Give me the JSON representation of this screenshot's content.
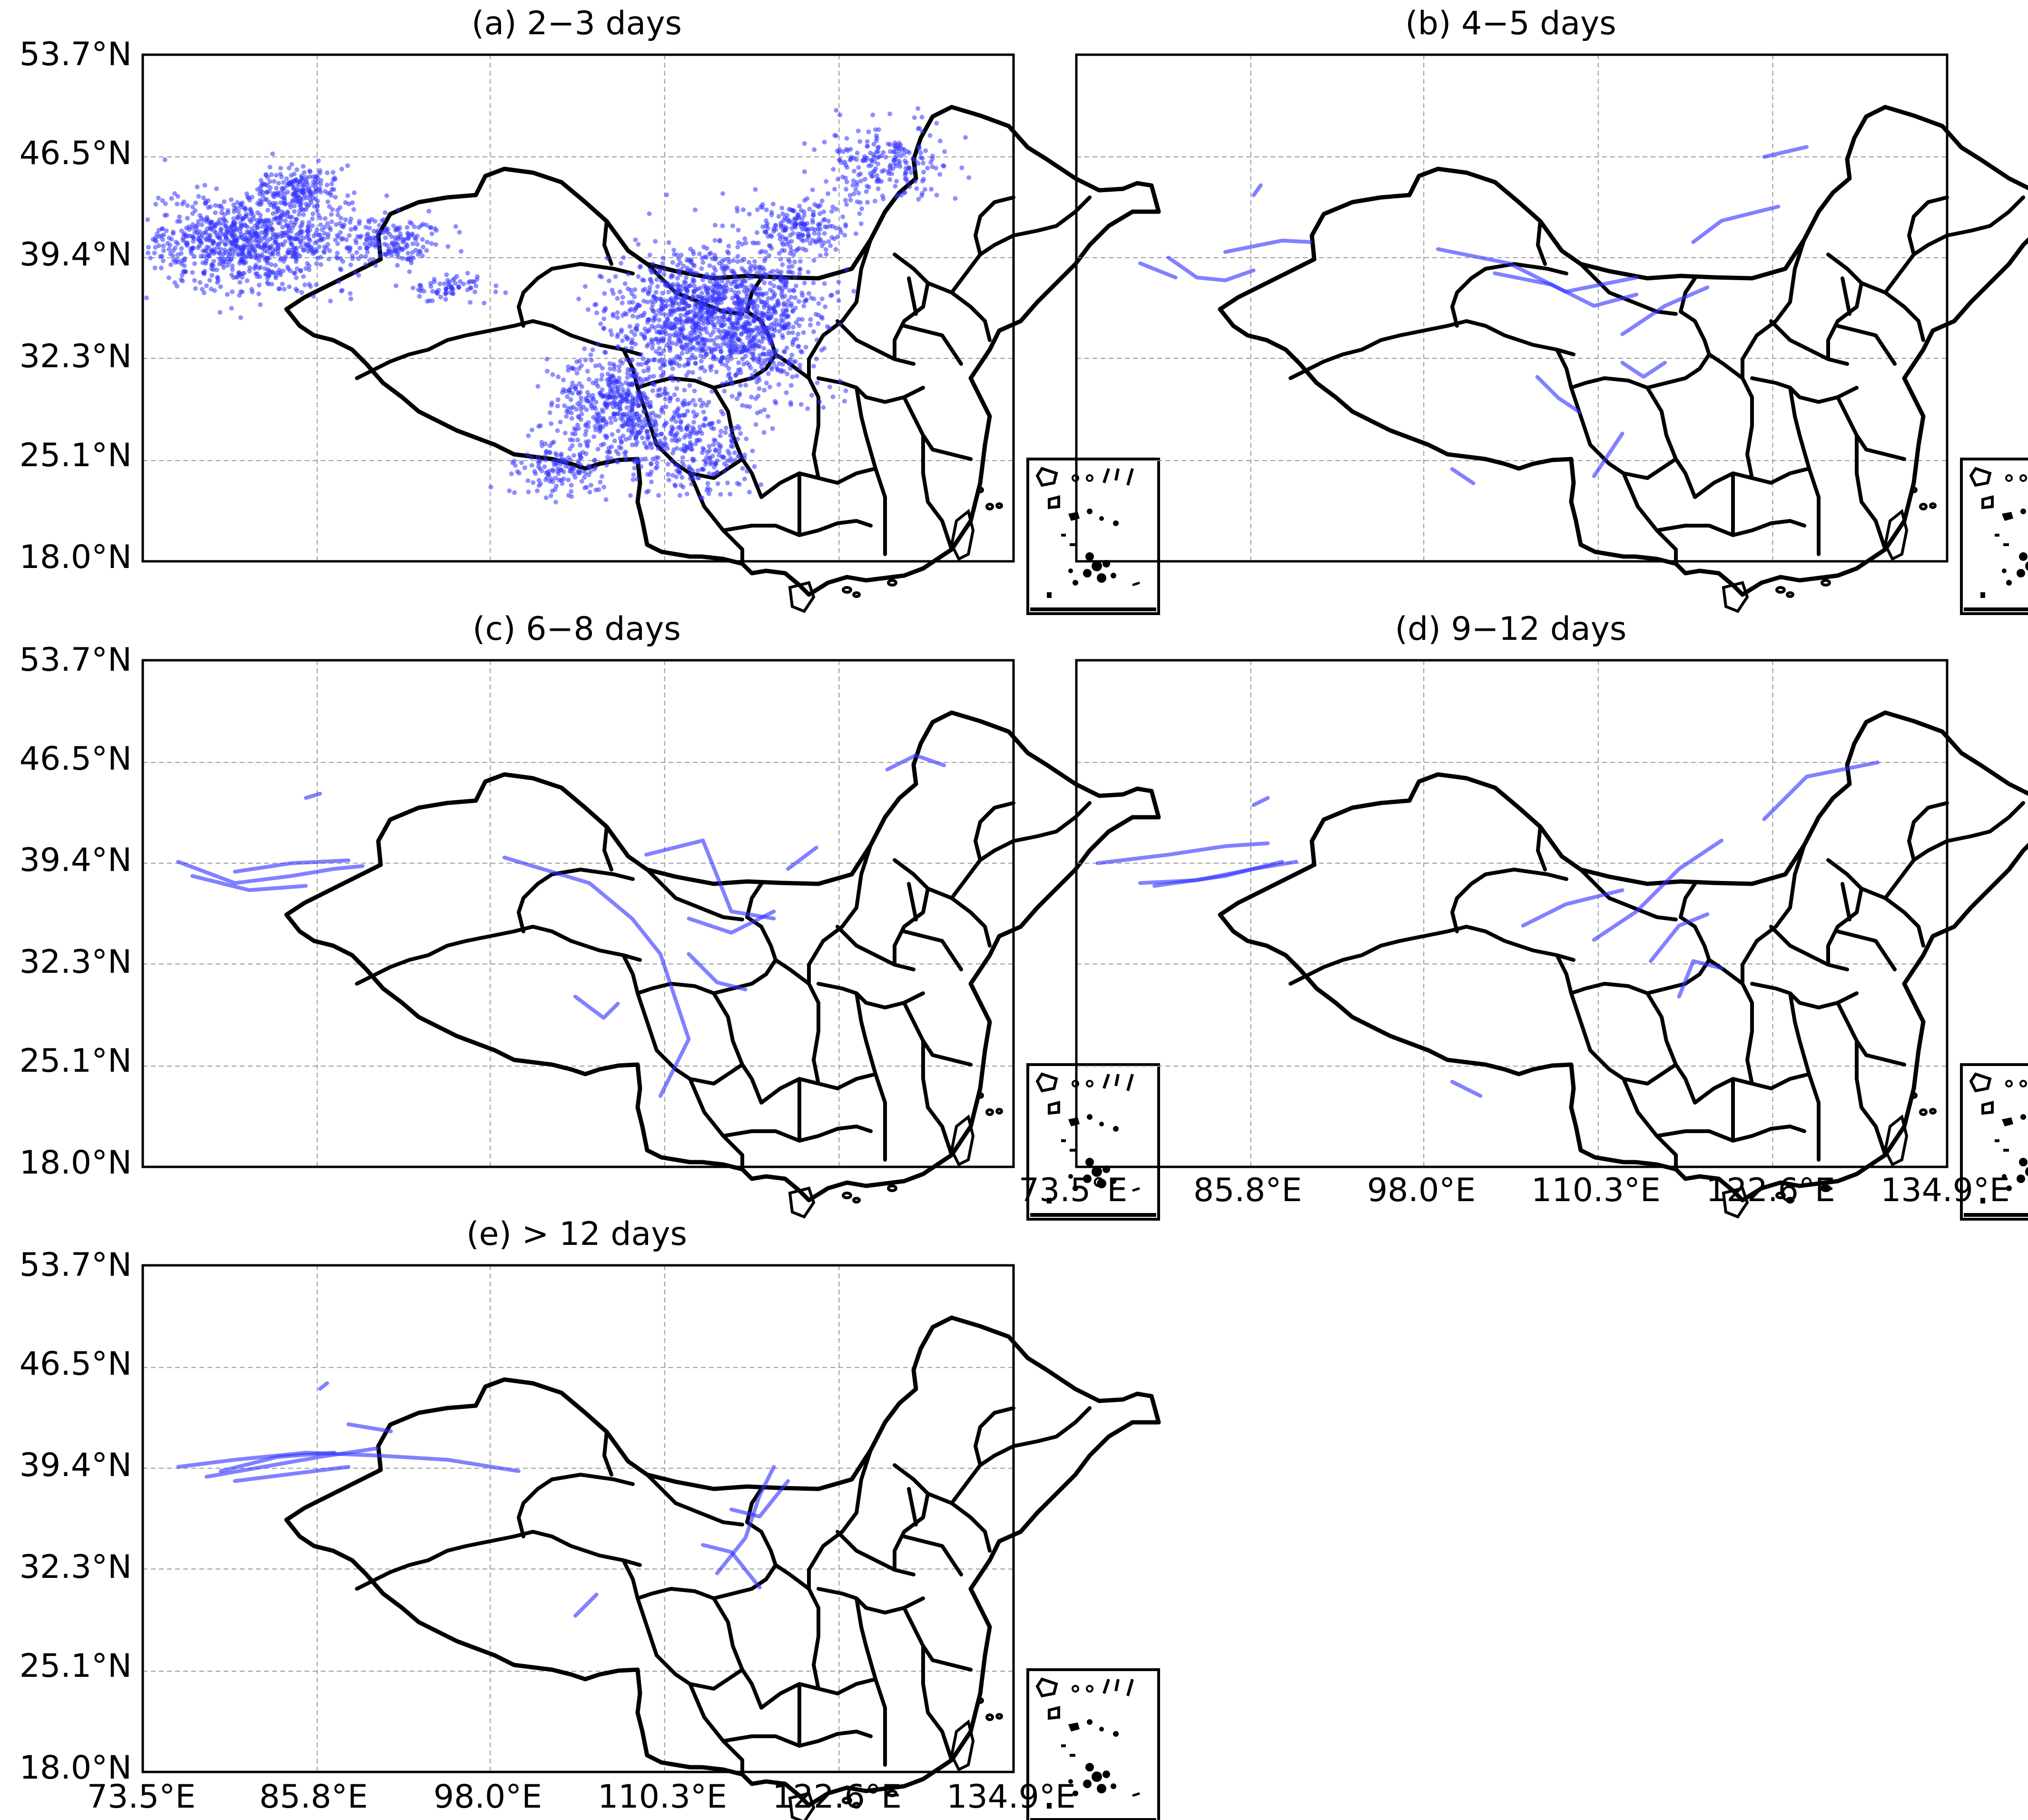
{
  "figure": {
    "colors": {
      "track": "#3333ff",
      "border": "#000000",
      "grid": "#9a9a9a"
    },
    "x_ticks": [
      "73.5°E",
      "85.8°E",
      "98.0°E",
      "110.3°E",
      "122.6°E",
      "134.9°E"
    ],
    "y_ticks": [
      "53.7°N",
      "46.5°N",
      "39.4°N",
      "32.3°N",
      "25.1°N",
      "18.0°N"
    ]
  },
  "panels": [
    {
      "title": "(a) 2−3 days"
    },
    {
      "title": "(b) 4−5 days"
    },
    {
      "title": "(c) 6−8 days"
    },
    {
      "title": "(d) 9−12 days"
    },
    {
      "title": "(e) > 12 days"
    }
  ],
  "chart_data": {
    "type": "scatter",
    "xlim": [
      73.5,
      134.9
    ],
    "ylim": [
      18.0,
      53.7
    ],
    "x_ticks": [
      73.5,
      85.8,
      98.0,
      110.3,
      122.6,
      134.9
    ],
    "y_ticks": [
      18.0,
      25.1,
      32.3,
      39.4,
      46.5,
      53.7
    ],
    "grid": true,
    "panels": [
      {
        "title": "(a) 2−3 days",
        "clusters": [
          {
            "lon": 81,
            "lat": 40.5,
            "spread": [
              7,
              3
            ],
            "count": 900
          },
          {
            "lon": 84.5,
            "lat": 44.3,
            "spread": [
              2.5,
              1.4
            ],
            "count": 180
          },
          {
            "lon": 91,
            "lat": 40.6,
            "spread": [
              3.5,
              1.5
            ],
            "count": 160
          },
          {
            "lon": 95,
            "lat": 37.3,
            "spread": [
              2.5,
              1.0
            ],
            "count": 70
          },
          {
            "lon": 112,
            "lat": 35.5,
            "spread": [
              5,
              4
            ],
            "count": 800
          },
          {
            "lon": 117,
            "lat": 35,
            "spread": [
              4,
              5
            ],
            "count": 600
          },
          {
            "lon": 107,
            "lat": 29,
            "spread": [
              4,
              3
            ],
            "count": 450
          },
          {
            "lon": 112,
            "lat": 26,
            "spread": [
              4,
              3
            ],
            "count": 300
          },
          {
            "lon": 103,
            "lat": 24.5,
            "spread": [
              3,
              2
            ],
            "count": 150
          },
          {
            "lon": 126,
            "lat": 46,
            "spread": [
              4,
              2.5
            ],
            "count": 220
          },
          {
            "lon": 120,
            "lat": 41.5,
            "spread": [
              3,
              2
            ],
            "count": 180
          }
        ]
      },
      {
        "title": "(b) 4−5 days",
        "tracks": [
          [
            [
              80,
              39.4
            ],
            [
              82,
              38.0
            ],
            [
              84,
              37.8
            ],
            [
              86,
              38.5
            ]
          ],
          [
            [
              78,
              39.0
            ],
            [
              80.5,
              38.0
            ]
          ],
          [
            [
              84,
              39.8
            ],
            [
              88,
              40.6
            ],
            [
              90,
              40.5
            ]
          ],
          [
            [
              86,
              43.8
            ],
            [
              86.5,
              44.5
            ]
          ],
          [
            [
              99,
              40
            ],
            [
              104,
              39
            ],
            [
              108,
              37
            ],
            [
              113,
              38
            ]
          ],
          [
            [
              103,
              38.3
            ],
            [
              107,
              37.5
            ],
            [
              110,
              36.0
            ],
            [
              113,
              36.8
            ]
          ],
          [
            [
              112,
              34
            ],
            [
              115,
              36
            ],
            [
              118,
              37.3
            ]
          ],
          [
            [
              117,
              40.5
            ],
            [
              119,
              42
            ],
            [
              123,
              43
            ]
          ],
          [
            [
              122,
              46.5
            ],
            [
              125,
              47.2
            ]
          ],
          [
            [
              112,
              32
            ],
            [
              113.5,
              31
            ],
            [
              115,
              32
            ]
          ],
          [
            [
              106,
              31
            ],
            [
              107.5,
              29.5
            ],
            [
              109,
              28.5
            ]
          ],
          [
            [
              110,
              24.0
            ],
            [
              112,
              27.0
            ]
          ],
          [
            [
              100,
              24.5
            ],
            [
              101.5,
              23.5
            ]
          ]
        ]
      },
      {
        "title": "(c) 6−8 days",
        "tracks": [
          [
            [
              76,
              39.5
            ],
            [
              80,
              38.0
            ],
            [
              84,
              38.5
            ],
            [
              87,
              39.0
            ],
            [
              89,
              39.2
            ]
          ],
          [
            [
              77,
              38.5
            ],
            [
              81,
              37.5
            ],
            [
              85,
              37.8
            ]
          ],
          [
            [
              80,
              38.8
            ],
            [
              84,
              39.4
            ],
            [
              88,
              39.6
            ]
          ],
          [
            [
              85,
              44
            ],
            [
              86,
              44.3
            ]
          ],
          [
            [
              99,
              39.8
            ],
            [
              105,
              38.0
            ],
            [
              108,
              35.5
            ],
            [
              110,
              33.0
            ],
            [
              111,
              30.0
            ],
            [
              112,
              27.0
            ],
            [
              110,
              23.0
            ]
          ],
          [
            [
              109,
              40
            ],
            [
              113,
              41
            ],
            [
              115,
              36
            ],
            [
              118,
              35.5
            ]
          ],
          [
            [
              112,
              35.5
            ],
            [
              115,
              34.5
            ],
            [
              118,
              36.0
            ]
          ],
          [
            [
              112,
              33
            ],
            [
              114,
              31
            ],
            [
              116,
              30.5
            ]
          ],
          [
            [
              104,
              30
            ],
            [
              106,
              28.5
            ],
            [
              107,
              29.5
            ]
          ],
          [
            [
              126,
              46
            ],
            [
              128,
              47
            ],
            [
              130,
              46.3
            ]
          ],
          [
            [
              119,
              39
            ],
            [
              121,
              40.5
            ]
          ]
        ]
      },
      {
        "title": "(d) 9−12 days",
        "tracks": [
          [
            [
              75,
              39.4
            ],
            [
              80,
              40.0
            ],
            [
              84,
              40.6
            ],
            [
              87,
              40.8
            ]
          ],
          [
            [
              78,
              38.0
            ],
            [
              82,
              38.2
            ],
            [
              86,
              39.0
            ],
            [
              89,
              39.5
            ]
          ],
          [
            [
              79,
              37.8
            ],
            [
              84,
              38.5
            ],
            [
              88,
              39.5
            ]
          ],
          [
            [
              86,
              43.5
            ],
            [
              87,
              44
            ]
          ],
          [
            [
              105,
              35
            ],
            [
              108,
              36.5
            ],
            [
              112,
              37.5
            ]
          ],
          [
            [
              110,
              34
            ],
            [
              113,
              36
            ],
            [
              116,
              39
            ],
            [
              119,
              41
            ]
          ],
          [
            [
              114,
              32.5
            ],
            [
              116,
              35
            ],
            [
              118,
              35.8
            ]
          ],
          [
            [
              116,
              30
            ],
            [
              117,
              32.5
            ],
            [
              119,
              32
            ]
          ],
          [
            [
              122,
              42.5
            ],
            [
              125,
              45.5
            ],
            [
              130,
              46.5
            ]
          ],
          [
            [
              100,
              24
            ],
            [
              102,
              23
            ]
          ]
        ]
      },
      {
        "title": "(e) > 12 days",
        "tracks": [
          [
            [
              76,
              39.5
            ],
            [
              80,
              40.0
            ],
            [
              85,
              40.5
            ],
            [
              90,
              40.3
            ],
            [
              95,
              40.0
            ],
            [
              100,
              39.2
            ]
          ],
          [
            [
              78,
              38.8
            ],
            [
              82,
              39.5
            ],
            [
              86,
              40.2
            ],
            [
              90,
              40.8
            ]
          ],
          [
            [
              80,
              38.5
            ],
            [
              84,
              39.0
            ],
            [
              88,
              39.5
            ]
          ],
          [
            [
              79,
              39.2
            ],
            [
              83,
              40.2
            ],
            [
              87,
              40.5
            ]
          ],
          [
            [
              86,
              45.0
            ],
            [
              86.5,
              45.4
            ]
          ],
          [
            [
              88,
              42.5
            ],
            [
              91,
              42.0
            ]
          ],
          [
            [
              114,
              32.0
            ],
            [
              116,
              34.5
            ],
            [
              117,
              37.5
            ],
            [
              118,
              39.5
            ]
          ],
          [
            [
              115,
              36.5
            ],
            [
              117,
              36.0
            ],
            [
              119,
              38.5
            ]
          ],
          [
            [
              113,
              34.0
            ],
            [
              115,
              33.5
            ],
            [
              117,
              31.0
            ]
          ],
          [
            [
              104,
              29
            ],
            [
              105.5,
              30.5
            ]
          ]
        ]
      }
    ]
  }
}
